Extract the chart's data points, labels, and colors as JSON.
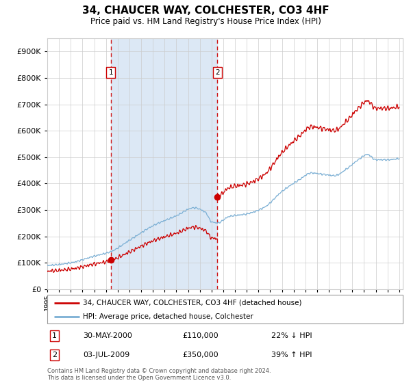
{
  "title": "34, CHAUCER WAY, COLCHESTER, CO3 4HF",
  "subtitle": "Price paid vs. HM Land Registry's House Price Index (HPI)",
  "legend_line1": "34, CHAUCER WAY, COLCHESTER, CO3 4HF (detached house)",
  "legend_line2": "HPI: Average price, detached house, Colchester",
  "purchase1_date": "30-MAY-2000",
  "purchase1_price": 110000,
  "purchase1_label": "22% ↓ HPI",
  "purchase1_year": 2000.41,
  "purchase2_date": "03-JUL-2009",
  "purchase2_price": 350000,
  "purchase2_label": "39% ↑ HPI",
  "purchase2_year": 2009.5,
  "note": "Contains HM Land Registry data © Crown copyright and database right 2024.\nThis data is licensed under the Open Government Licence v3.0.",
  "hpi_color": "#7bafd4",
  "price_color": "#cc0000",
  "bg_shade_color": "#dce8f5",
  "grid_color": "#cccccc",
  "ylim_max": 950000,
  "start_year": 1995,
  "end_year": 2025
}
